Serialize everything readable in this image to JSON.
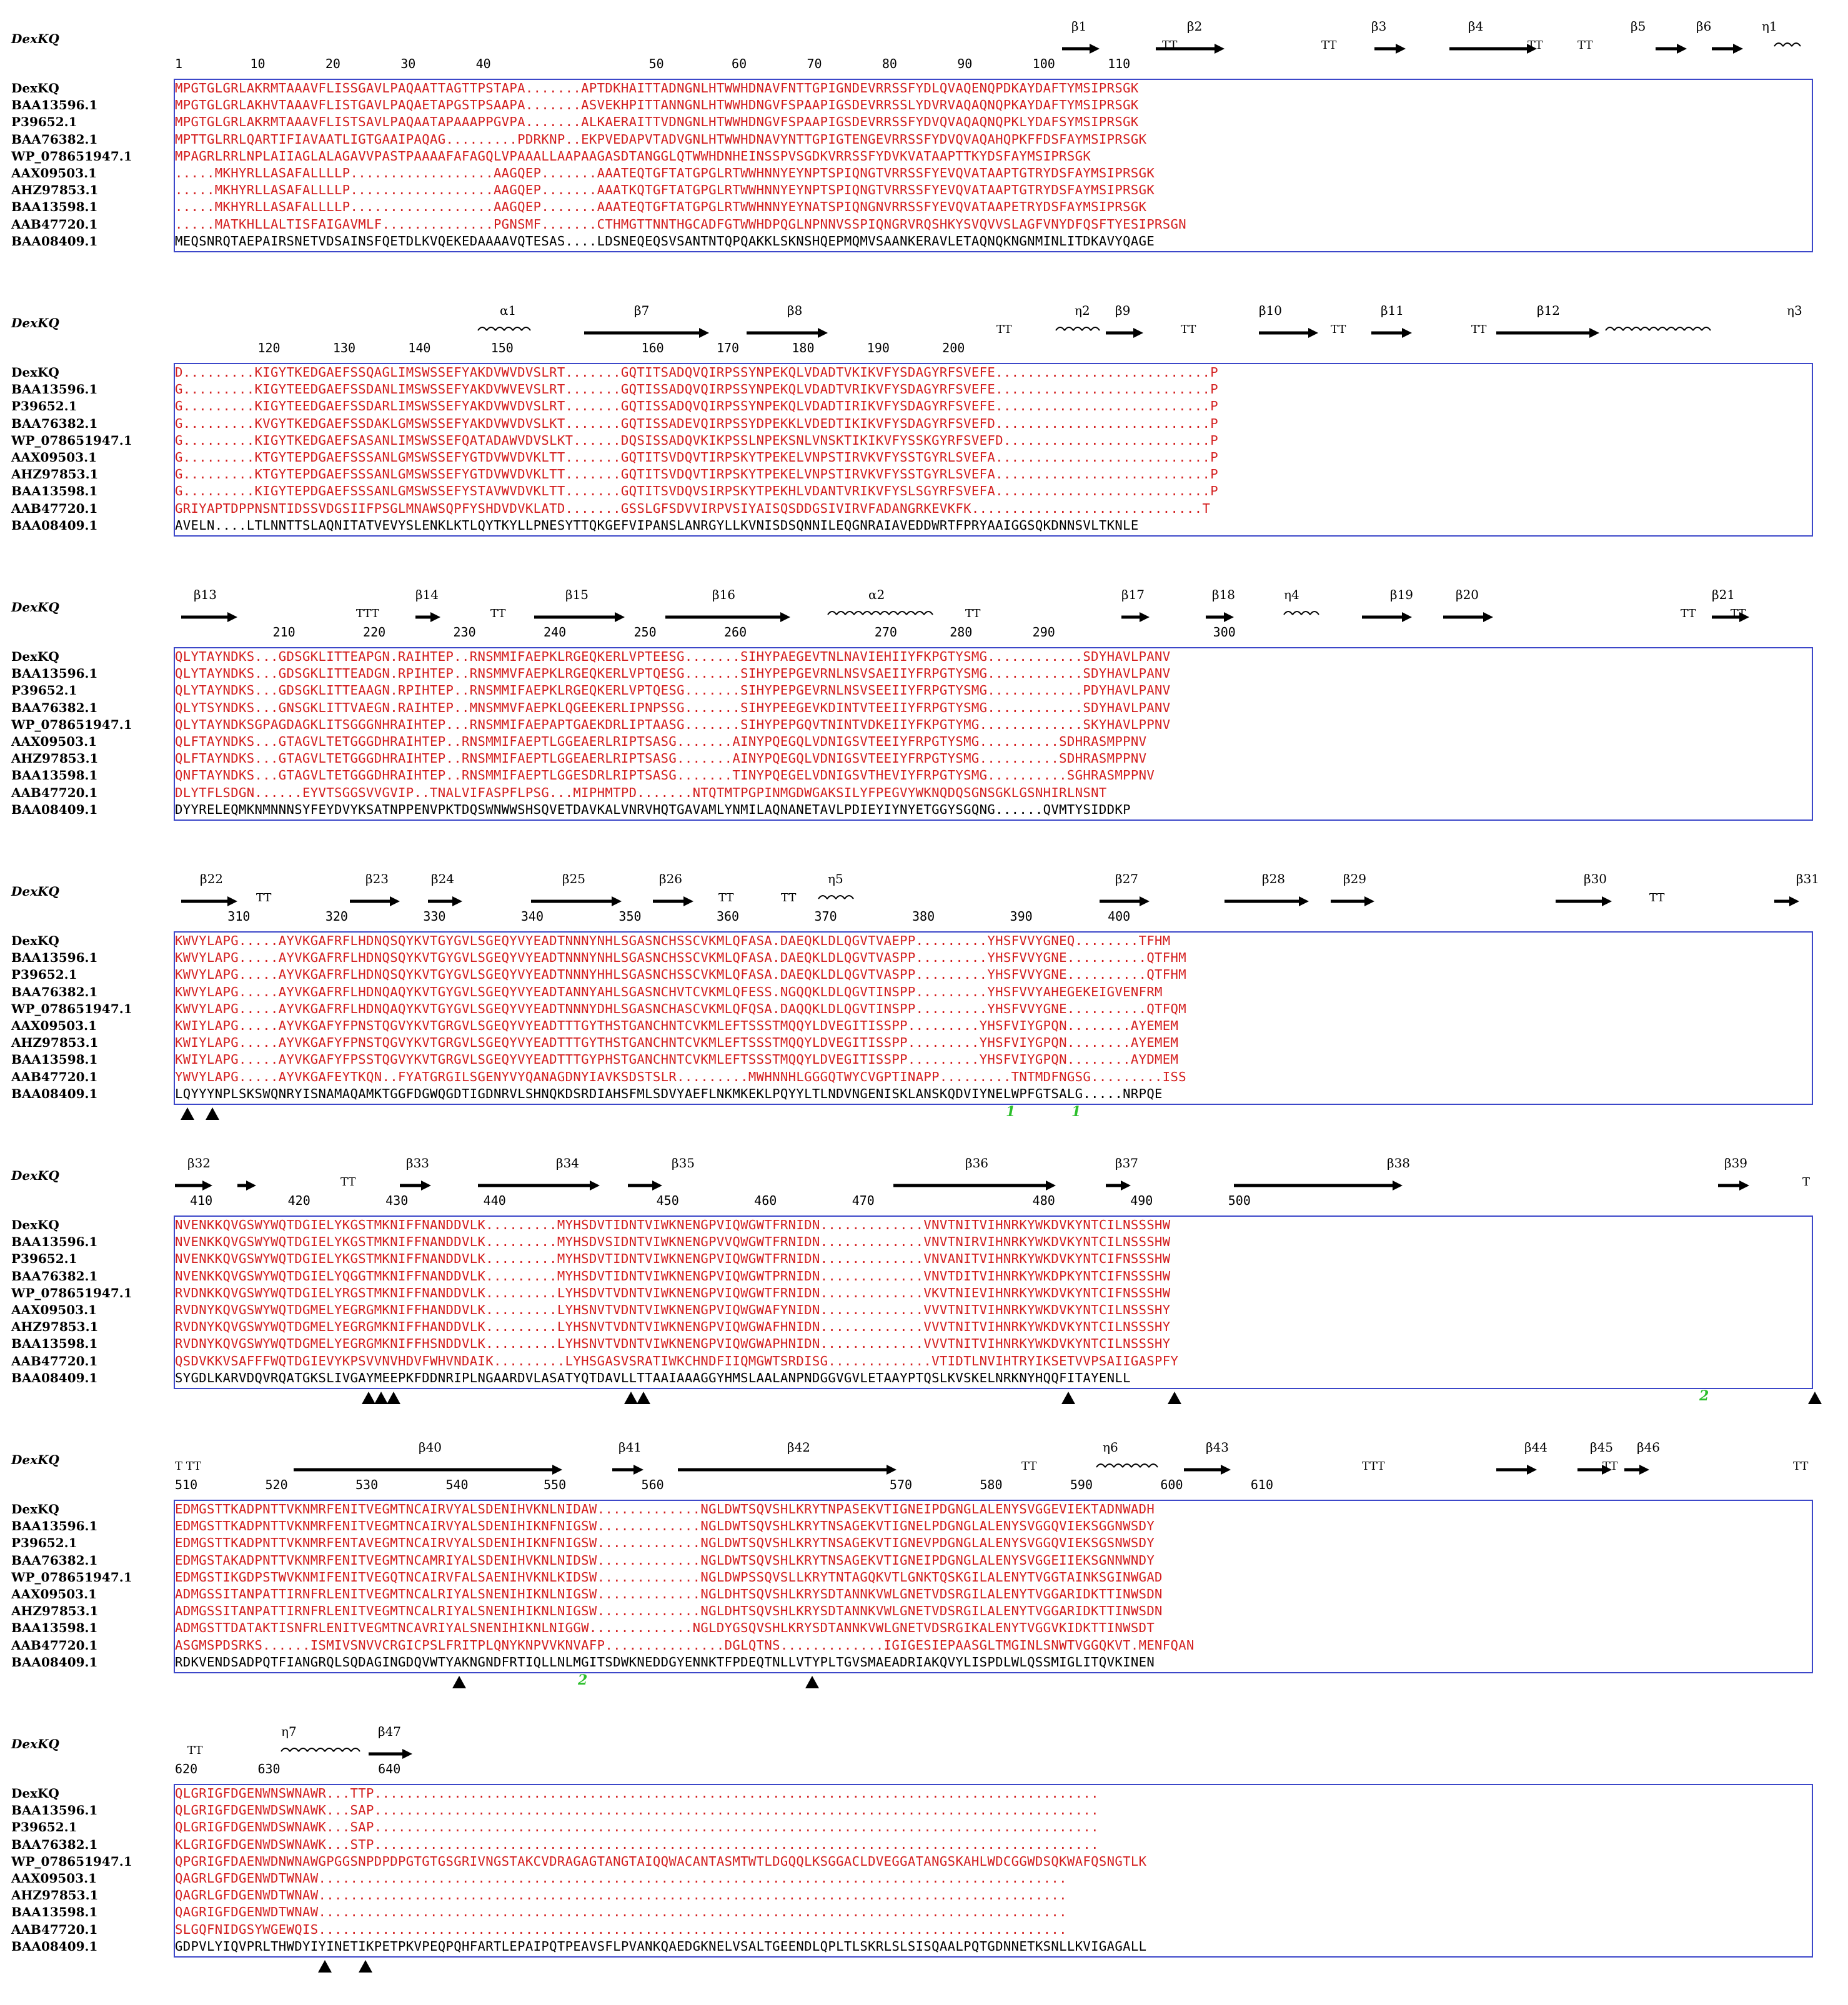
{
  "title_label": "DexKQ",
  "sequence_names": [
    "DexKQ",
    "BAA13596.1",
    "P39652.1",
    "BAA76382.1",
    "WP_078651947.1",
    "AAX09503.1",
    "AHZ97853.1",
    "BAA13598.1",
    "AAB47720.1",
    "BAA08409.1"
  ],
  "colors": {
    "identical_bg": "#d41f1f",
    "similar_text": "#d41f1f",
    "box": "#3c47c9",
    "site_marker": "#000000",
    "disulfide": "#2dbf2d"
  },
  "blocks": [
    {
      "ruler": "1         10        20        30        40                     50         60        70        80        90        100       110",
      "ss_labels": [
        "β1",
        "β2",
        "β3",
        "β4",
        "β5",
        "β6",
        "η1"
      ],
      "turns": [
        "TT",
        "TT",
        "TT",
        "TT"
      ],
      "seqs": [
        "MPGTGLGRLAKRMTAAAVFLISSGAVLPAQAATTAGTTPSTAPA.......APTDKHAITTADNGNLHTWWHDNAVFNTTGPIGNDEVRRSSFYDLQVAQENQPDKAYDAFTYMSIPRSGK",
        "MPGTGLGRLAKHVTAAAVFLISTGAVLPAQAETAPGSTPSAAPA.......ASVEKHPITTANNGNLHTWWHDNGVFSPAAPIGSDEVRRSSLYDVRVAQAQNQPKAYDAFTYMSIPRSGK",
        "MPGTGLGRLAKRMTAAAVFLISTSAVLPAQAATAPAAAPPGVPA.......ALKAERAITTVDNGNLHTWWHDNGVFSPAAPIGSDEVRRSSFYDVQVAQAQNQPKLYDAFSYMSIPRSGK",
        "MPTTGLRRLQARTIFIAVAATLIGTGAAIPAQAG.........PDRKNP..EKPVEDAPVTADVGNLHTWWHDNAVYNTTGPIGTENGEVRRSSFYDVQVAQAHQPKFFDSFAYMSIPRSGK",
        "MPAGRLRRLNPLAIIAGLALAGAVVPASTPAAAAFAFAGQLVPAAALLAAPAAGASDTANGGLQTWWHDNHEINSSPVSGDKVRRSSFYDVKVATAAPTTKYDSFAYMSIPRSGK",
        ".....MKHYRLLASAFALLLLP..................AAGQEP.......AAATEQTGFTATGPGLRTWWHNNYEYNPTSPIQNGTVRRSSFYEVQVATAAPTGTRYDSFAYMSIPRSGK",
        ".....MKHYRLLASAFALLLLP..................AAGQEP.......AAATKQTGFTATGPGLRTWWHNNYEYNPTSPIQNGTVRRSSFYEVQVATAAPTGTRYDSFAYMSIPRSGK",
        ".....MKHYRLLASAFALLLLP..................AAGQEP.......AAATEQTGFTATGPGLRTWWHNNYEYNATSPIQNGNVRRSSFYEVQVATAAPETRYDSFAYMSIPRSGK",
        ".....MATKHLLALTISFAIGAVMLF..............PGNSMF.......CTHMGTTNNTHGCADFGTWWHDPQGLNPNNVSSPIQNGRVRQSHKYSVQVVSLAGFVNYDFQSFTYESIPRSGN",
        "MEQSNRQTAEPAIRSNETVDSAINSFQETDLKVQEKEDAAAAVQTESAS....LDSNEQEQSVSANTNTQPQAKKLSKNSHQEPMQMVSAANKERAVLETAQNQKNGNMINLITDKAVYQAGE"
      ]
    },
    {
      "ruler": "           120       130       140        150                 160       170       180       190       200",
      "ss_labels": [
        "α1",
        "β7",
        "β8",
        "η2",
        "β9",
        "β10",
        "β11",
        "β12",
        "η3"
      ],
      "turns": [
        "TT",
        "TT",
        "TT",
        "TT"
      ],
      "seqs": [
        "D.........KIGYTKEDGAEFSSQAGLIMSWSSEFYAKDVWVDVSLRT.......GQTITSADQVQIRPSSYNPEKQLVDADTVKIKVFYSDAGYRFSVEFE...........................P",
        "G.........KIGYTEEDGAEFSSDANLIMSWSSEFYAKDVWVEVSLRT.......GQTISSADQVQIRPSSYNPEKQLVDADTVRIKVFYSDAGYRFSVEFE...........................P",
        "G.........KIGYTEEDGAEFSSDARLIMSWSSEFYAKDVWVDVSLRT.......GQTISSADQVQIRPSSYNPEKQLVDADTIRIKVFYSDAGYRFSVEFE...........................P",
        "G.........KVGYTKEDGAEFSSDAKLGMSWSSEFYAKDVWVDVSLKT.......GQTISSADEVQIRPSSYDPEKKLVDEDTIKIKVFYSDAGYRFSVEFD...........................P",
        "G.........KIGYTKEDGAEFSASANLIMSWSSEFQATADAWVDVSLKT......DQSISSADQVKIKPSSLNPEKSNLVNSKTIKIKVFYSSKGYRFSVEFD..........................P",
        "G.........KTGYTEPDGAEFSSSANLGMSWSSEFYGTDVWVDVKLTT.......GQTITSVDQVTIRPSKYTPEKELVNPSTIRVKVFYSSTGYRLSVEFA...........................P",
        "G.........KTGYTEPDGAEFSSSANLGMSWSSEFYGTDVWVDVKLTT.......GQTITSVDQVTIRPSKYTPEKELVNPSTIRVKVFYSSTGYRLSVEFA...........................P",
        "G.........KIGYTEPDGAEFSSSANLGMSWSSEFYSTAVWVDVKLTT.......GQTITSVDQVSIRPSKYTPEKHLVDANTVRIKVFYSLSGYRFSVEFA...........................P",
        "GRIYAPTDPPNSNTIDSSVDGSIIFPSGLMNAWSQPFYSHDVDVKLATD.......GSSLGFSDVVIRPVSIYAISQSDDGSIVIRVFADANGRKEVKFK.............................T",
        "AVELN....LTLNNTTSLAQNITATVEVYSLENKLKTLQYTKYLLPNESYTTQKGEFVIPANSLANRGYLLKVNISDSQNNILEQGNRAIAVEDDWRTFPRYAAIGGSQKDNNSVLTKNLE"
      ]
    },
    {
      "ruler": "             210         220         230         240         250         260                 270       280        290                     300",
      "ss_labels": [
        "β13",
        "β14",
        "β15",
        "β16",
        "α2",
        "β17",
        "β18",
        "η4",
        "β19",
        "β20",
        "β21"
      ],
      "turns": [
        "TTT",
        "TT",
        "TT",
        "TT",
        "TT"
      ],
      "seqs": [
        "QLYTAYNDKS...GDSGKLITTEAPGN.RAIHTEP..RNSMMIFAEPKLRGEQKERLVPTEESG.......SIHYPAEGEVTNLNAVIEHIIYFKPGTYSMG............SDYHAVLPANV",
        "QLYTAYNDKS...GDSGKLITTEADGN.RPIHTEP..RNSMMVFAEPKLRGEQKERLVPTQESG.......SIHYPEPGEVRNLNSVSAEIIYFRPGTYSMG............SDYHAVLPANV",
        "QLYTAYNDKS...GDSGKLITTEAAGN.RPIHTEP..RNSMMIFAEPKLRGEQKERLVPTQESG.......SIHYPEPGEVRNLNSVSEEIIYFRPGTYSMG............PDYHAVLPANV",
        "QLYTSYNDKS...GNSGKLITTVAEGN.RAIHTEP..MNSMMVFAEPKLQGEEKERLIPNPSSG.......SIHYPEEGEVKDINTVTEEIIYFRPGTYSMG............SDYHAVLPANV",
        "QLYTAYNDKSGPAGDAGKLITSGGGNHRAIHTEP...RNSMMIFAEPAPTGAEKDRLIPTAASG.......SIHYPEPGQVTNINTVDKEIIYFKPGTYMG.............SKYHAVLPPNV",
        "QLFTAYNDKS...GTAGVLTETGGGDHRAIHTEP..RNSMMIFAEPTLGGEAERLRIPTSASG.......AINYPQEGQLVDNIGSVTEEIYFRPGTYSMG..........SDHRASMPPNV",
        "QLFTAYNDKS...GTAGVLTETGGGDHRAIHTEP..RNSMMIFAEPTLGGEAERLRIPTSASG.......AINYPQEGQLVDNIGSVTEEIYFRPGTYSMG..........SDHRASMPPNV",
        "QNFTAYNDKS...GTAGVLTETGGGDHRAIHTEP..RNSMMIFAEPTLGGESDRLRIPTSASG.......TINYPQEGELVDNIGSVTHEVIYFRPGTYSMG..........SGHRASMPPNV",
        "DLYTFLSDGN......EYVTSGGSVVGVIP..TNALVIFASPFLPSG...MIPHMTPD.......NTQTMTPGPINMGDWGAKSILYFPEGVYWKNQDQSGNSGKLGSNHIRLNSNT",
        "DYYRELEQMKNMNNNSYFEYDVYKSATNPPENVPKTDQSWNWWSHSQVETDAVKALVNRVHQTGAVAMLYNMILAQNANETAVLPDIEYIYNYETGGYSGQNG......QVMTYSIDDKP"
      ]
    },
    {
      "ruler": "       310          320          330          340          350          360          370          380          390          400",
      "ss_labels": [
        "β22",
        "β23",
        "β24",
        "β25",
        "β26",
        "η5",
        "β27",
        "β28",
        "β29",
        "β30",
        "β31"
      ],
      "turns": [
        "TT",
        "TT",
        "TT",
        "TT"
      ],
      "seqs": [
        "KWVYLAPG.....AYVKGAFRFLHDNQSQYKVTGYGVLSGEQYVYEADTNNNYNHLSGASNCHSSCVKMLQFASA.DAEQKLDLQGVTVAEPP.........YHSFVVYGNEQ........TFHM",
        "KWVYLAPG.....AYVKGAFRFLHDNQSQYKVTGYGVLSGEQYVYEADTNNNYNHLSGASNCHSSCVKMLQFASA.DAEQKLDLQGVTVASPP.........YHSFVVYGNE..........QTFHM",
        "KWVYLAPG.....AYVKGAFRFLHDNQSQYKVTGYGVLSGEQYVYEADTNNNYHHLSGASNCHSSCVKMLQFASA.DAEQKLDLQGVTVASPP.........YHSFVVYGNE..........QTFHM",
        "KWVYLAPG.....AYVKGAFRFLHDNQAQYKVTGYGVLSGEQYVYEADTANNYAHLSGASNCHVTCVKMLQFESS.NGQQKLDLQGVTINSPP.........YHSFVVYAHEGEKEIGVENFRM",
        "KWVYLAPG.....AYVKGAFRFLHDNQAQYKVTGYGVLSGEQYVYEADTNNNYDHLSGASNCHASCVKMLQFQSA.DAQQKLDLQGVTINSPP.........YHSFVVYGNE..........QTFQM",
        "KWIYLAPG.....AYVKGAFYFPNSTQGVYKVTGRGVLSGEQYVYEADTTTGYTHSTGANCHNTCVKMLEFTSSSTMQQYLDVEGITISSPP.........YHSFVIYGPQN........AYEMEM",
        "KWIYLAPG.....AYVKGAFYFPNSTQGVYKVTGRGVLSGEQYVYEADTTTGYTHSTGANCHNTCVKMLEFTSSSTMQQYLDVEGITISSPP.........YHSFVIYGPQN........AYEMEM",
        "KWIYLAPG.....AYVKGAFYFPSSTQGVYKVTGRGVLSGEQYVYEADTTTGYPHSTGANCHNTCVKMLEFTSSSTMQQYLDVEGITISSPP.........YHSFVIYGPQN........AYDMEM",
        "YWVYLAPG.....AYVKGAFEYTKQN..FYATGRGILSGENYVYQANAGDNYIAVKSDSTSLR.........MWHNNHLGGGQTWYCVGPTINAPP.........TNTMDFNGSG.........ISS",
        "LQYYYNPLSKSWQNRYISNAMAQAMKTGGFDGWQGDTIGDNRVLSHNQKDSRDIAHSFMLSDVYAEFLNKMKEKLPQYYLTLNDVNGENISKLANSKQDVIYNELWPFGTSALG.....NRPQE"
      ]
    },
    {
      "ruler": "  410          420          430          440                    450          460          470                     480          490          500",
      "ss_labels": [
        "β32",
        "β33",
        "β34",
        "β35",
        "β36",
        "β37",
        "β38",
        "β39"
      ],
      "turns": [
        "TT",
        "T"
      ],
      "seqs": [
        "NVENKKQVGSWYWQTDGIELYKGSTMKNIFFNANDDVLK.........MYHSDVTIDNTVIWKNENGPVIQWGWTFRNIDN.............VNVTNITVIHNRKYWKDVKYNTCILNSSSHW",
        "NVENKKQVGSWYWQTDGIELYKGSTMKNIFFNANDDVLK.........MYHSDVSIDNTVIWKNENGPVVQWGWTFRNIDN.............VNVTNIRVIHNRKYWKDVKYNTCILNSSSHW",
        "NVENKKQVGSWYWQTDGIELYKGSTMKNIFFNANDDVLK.........MYHSDVTIDNTVIWKNENGPVIQWGWTFRNIDN.............VNVANITVIHNRKYWKDVKYNTCIFNSSSHW",
        "NVENKKQVGSWYWQTDGIELYQGGTMKNIFFNANDDVLK.........MYHSDVTIDNTVIWKNENGPVIQWGWTPRNIDN.............VNVTDITVIHNRKYWKDPKYNTCIFNSSSHW",
        "RVDNKKQVGSWYWQTDGIELYRGSTMKNIFFNANDDVLK.........LYHSDVTVDNTVIWKNENGPVIQWGWTFRNIDN.............VKVTNIEVIHNRKYWKDVKYNTCIFNSSSHW",
        "RVDNYKQVGSWYWQTDGMELYEGRGMKNIFFHANDDVLK.........LYHSNVTVDNTVIWKNENGPVIQWGWAFYNIDN.............VVVTNITVIHNRKYWKDVKYNTCILNSSSHY",
        "RVDNYKQVGSWYWQTDGMELYEGRGMKNIFFHANDDVLK.........LYHSNVTVDNTVIWKNENGPVIQWGWAFHNIDN.............VVVTNITVIHNRKYWKDVKYNTCILNSSSHY",
        "RVDNYKQVGSWYWQTDGMELYEGRGMKNIFFHSNDDVLK.........LYHSNVTVDNTVIWKNENGPVIQWGWAPHNIDN.............VVVTNITVIHNRKYWKDVKYNTCILNSSSHY",
        "QSDVKKVSAFFFWQTDGIEVYKPSVVNVHDVFWHVNDAIK.........LYHSGASVSRATIWKCHNDFIIQMGWTSRDISG.............VTIDTLNVIHTRYIKSETVVPSAIIGASPFY",
        "SYGDLKARVDQVRQATGKSLIVGAYMEEPKFDDNRIPLNGAARDVLASATYQTDAVLLTTAAIAAAGGYHMSLAALANPNDGGVGVLETAAYPTQSLKVSKELNRKNYHQQFITAYENLL"
      ]
    },
    {
      "ruler": "510         520         530         540          550          560                              570         580         590         600         610",
      "ss_labels": [
        "β40",
        "β41",
        "β42",
        "η6",
        "β43",
        "β44",
        "β45",
        "β46"
      ],
      "turns": [
        "T TT",
        "TT",
        "TTT",
        "TT",
        "TT"
      ],
      "seqs": [
        "EDMGSTTKADPNTTVKNMRFENITVEGMTNCAIRVYALSDENIHVKNLNIDAW.............NGLDWTSQVSHLKRYTNPASEKVTIGNEIPDGNGLALENYSVGGEVIEKTADNWADH",
        "EDMGSTTKADPNTTVKNMRFENITVEGMTNCAIRVYALSDENIHIKNFNIGSW.............NGLDWTSQVSHLKRYTNSAGEKVTIGNELPDGNGLALENYSVGGQVIEKSGGNWSDY",
        "EDMGSTTKADPNTTVKNMRFENTAVEGMTNCAIRVYALSDENIHIKNFNIGSW.............NGLDWTSQVSHLKRYTNSAGEKVTIGNEVPDGNGLALENYSVGGQVIEKSGSNWSDY",
        "EDMGSTAKADPNTTVKNMRFENITVEGMTNCAMRIYALSDENIHVKNLNIDSW.............NGLDWTSQVSHLKRYTNSAGEKVTIGNEIPDGNGLALENYSVGGEIIEKSGNNWNDY",
        "EDMGSTIKGDPSTWVKNMIFENITVEGQTNCAIRVFALSAENIHVKNLKIDSW.............NGLDWPSSQVSLLKRYTNTAGQKVTLGNKTQSKGILALENYTVGGTAINKSGINWGAD",
        "ADMGSSITANPATTIRNFRLENITVEGMTNCALRIYALSNENIHIKNLNIGSW.............NGLDHTSQVSHLKRYSDTANNKVWLGNETVDSRGILALENYTVGGARIDKTTINWSDN",
        "ADMGSSITANPATTIRNFRLENITVEGMTNCALRIYALSNENIHIKNLNIGSW.............NGLDHTSQVSHLKRYSDTANNKVWLGNETVDSRGILALENYTVGGARIDKTTINWSDN",
        "ADMGSTTDATAKTISNFRLENITVEGMTNCAVRIYALSNENIHIKNLNIGGW.............NGLDYGSQVSHLKRYSDTANNKVWLGNETVDSRGIKALENYTVGGVKIDKTTINWSDT",
        "ASGMSPDSRKS......ISMIVSNVVCRGICPSLFRITPLQNYKNPVVKNVAFP...............DGLQTNS.............IGIGESIEPAASGLTMGINLSNWTVGGQKVT.MENFQAN",
        "RDKVENDSADPQTFIANGRQLSQDAGINGDQVWTYAKNGNDFRTIQLLNLMGITSDWKNEDDGYENNKTFPDEQTNLLVTYPLTGVSMAEADRIAKQVYLISPDLWLQSSMIGLITQVKINEN"
      ]
    },
    {
      "ruler": "620        630             640",
      "ss_labels": [
        "η7",
        "β47"
      ],
      "turns": [
        "TT"
      ],
      "seqs": [
        "QLGRIGFDGENWNSWNAWR...TTP...........................................................................................",
        "QLGRIGFDGENWDSWNAWK...SAP...........................................................................................",
        "QLGRIGFDGENWDSWNAWK...SAP...........................................................................................",
        "KLGRIGFDGENWDSWNAWK...STP...........................................................................................",
        "QPGRIGFDAENWDNWNAWGPGGSNPDPDPGTGTGSGRIVNGSTAKCVDRAGAGTANGTAIQQWACANTASMTWTLDGQQLKSGGACLDVEGGATANGSKAHLWDCGGWDSQKWAFQSNGTLK",
        "QAGRLGFDGENWDTWNAW..............................................................................................",
        "QAGRLGFDGENWDTWNAW..............................................................................................",
        "QAGRIGFDGENWDTWNAW..............................................................................................",
        "SLGQFNIDGSYWGEWQIS..............................................................................................",
        "GDPVLYIQVPRLTHWDYIYINETIKPETPKVPEQPQHFARTLEPAIPQTPEAVSFLPVANKQAEDGKNELVSALTGEENDLQPLTLSKRLSLSISQAALPQTGDNNETKSNLLKVIGAGALL"
      ]
    }
  ],
  "disulfide_labels": [
    "1",
    "1",
    "2",
    "2"
  ]
}
